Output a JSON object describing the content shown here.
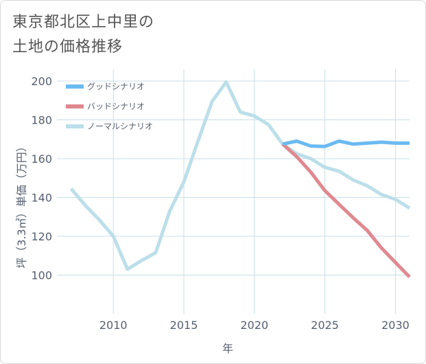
{
  "title": {
    "line1": "東京都北区上中里の",
    "line2": "土地の価格推移"
  },
  "colors": {
    "good": "#6bbaf0",
    "bad": "#e08890",
    "normal": "#bcdfea",
    "grid": "#c8dde8",
    "text": "#555f70"
  },
  "chart_data": {
    "type": "line",
    "title": "東京都北区上中里の土地の価格推移",
    "xlabel": "年",
    "ylabel": "坪（3.3㎡）単価（万円）",
    "xlim": [
      2006,
      2031
    ],
    "ylim": [
      80,
      206
    ],
    "xticks": [
      2010,
      2015,
      2020,
      2025,
      2030
    ],
    "xtick_labels": [
      "2010",
      "2015",
      "2020",
      "2025",
      "2030"
    ],
    "yticks": [
      100,
      120,
      140,
      160,
      180,
      200
    ],
    "ytick_labels": [
      "100",
      "120",
      "140",
      "160",
      "180",
      "200"
    ],
    "grid": true,
    "legend_position": "top-left",
    "series": [
      {
        "name": "グッドシナリオ",
        "key": "good",
        "x": [
          2022,
          2023,
          2024,
          2025,
          2026,
          2027,
          2028,
          2029,
          2030,
          2031
        ],
        "values": [
          167.5,
          169,
          166.5,
          166.3,
          169,
          167.5,
          168,
          168.5,
          168,
          168
        ]
      },
      {
        "name": "バッドシナリオ",
        "key": "bad",
        "x": [
          2022,
          2023,
          2024,
          2025,
          2026,
          2027,
          2028,
          2029,
          2030,
          2031
        ],
        "values": [
          167.5,
          161,
          153,
          143.5,
          136.5,
          129.5,
          123,
          114,
          106.5,
          99
        ]
      },
      {
        "name": "ノーマルシナリオ",
        "key": "normal",
        "x": [
          2007,
          2008,
          2009,
          2010,
          2011,
          2012,
          2013,
          2014,
          2015,
          2016,
          2017,
          2018,
          2019,
          2020,
          2021,
          2022,
          2023,
          2024,
          2025,
          2026,
          2027,
          2028,
          2029,
          2030,
          2031
        ],
        "values": [
          144.5,
          136,
          128.5,
          120,
          103,
          107.5,
          111.5,
          133,
          148,
          169,
          189.5,
          199.5,
          184,
          182,
          177.5,
          167.5,
          162.5,
          160,
          155.5,
          153.5,
          149,
          146,
          141.5,
          139,
          134.5
        ]
      }
    ]
  }
}
